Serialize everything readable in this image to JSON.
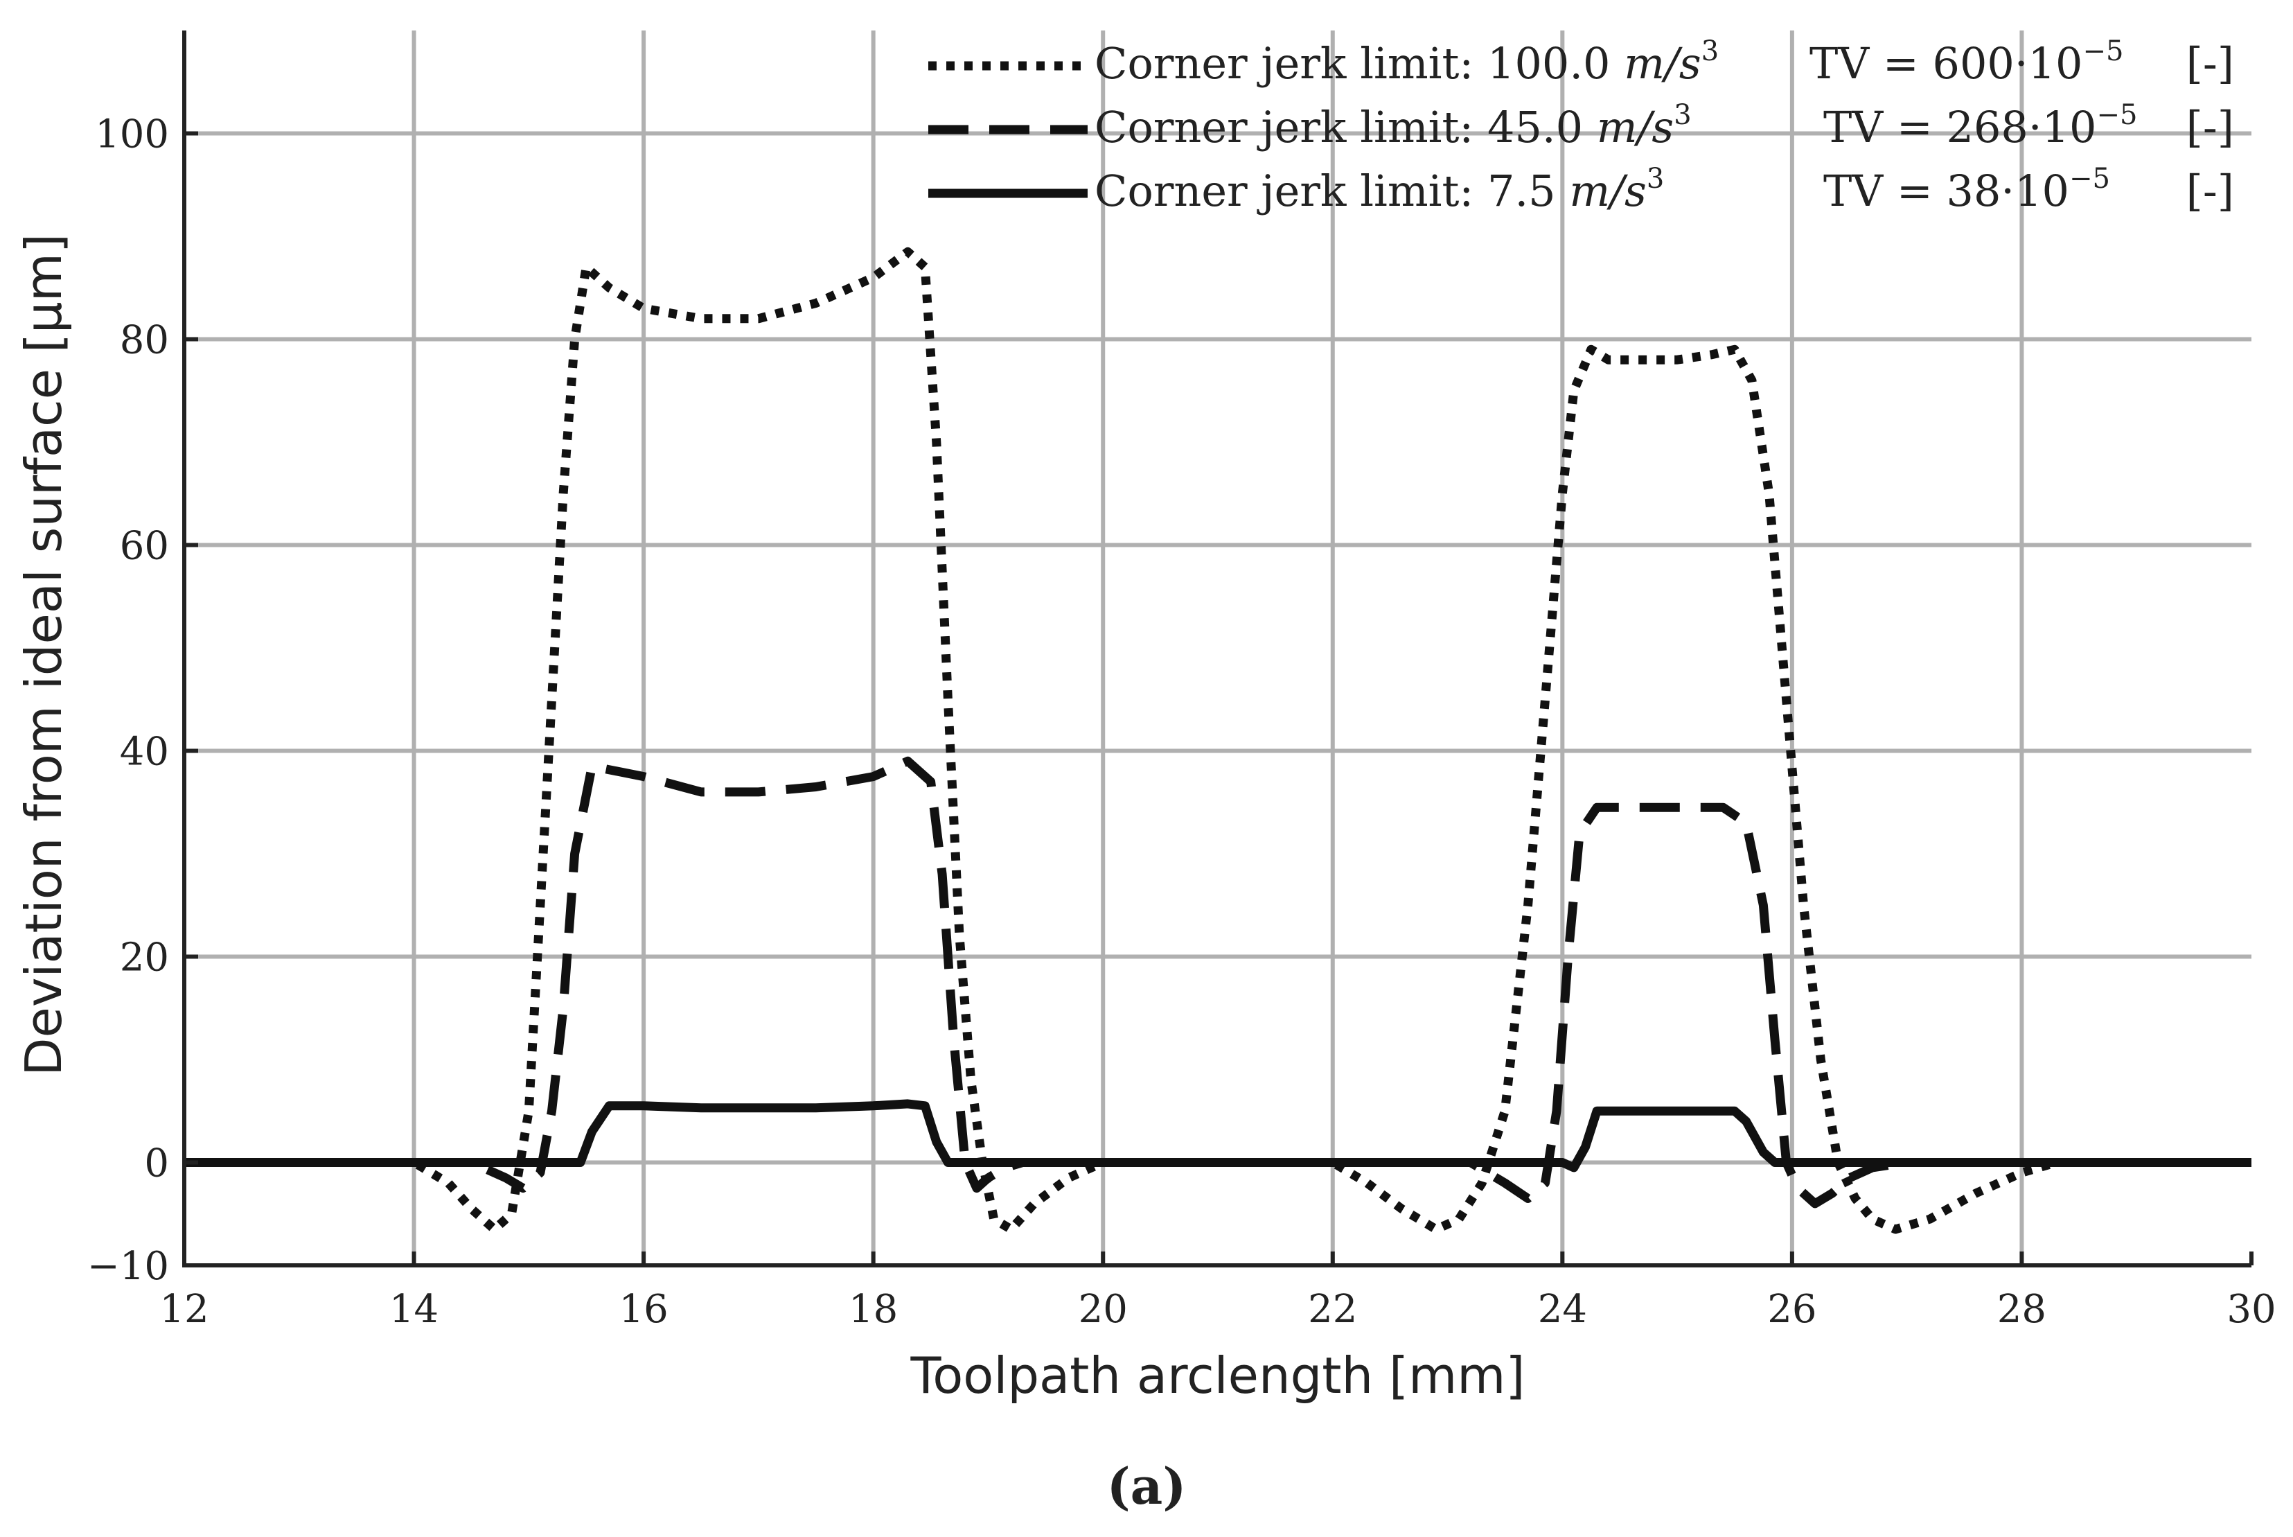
{
  "chart_data": {
    "type": "line",
    "title": "",
    "xlabel": "Toolpath arclength [mm]",
    "ylabel": "Deviation from ideal surface [μm]",
    "xlim": [
      12,
      30
    ],
    "ylim": [
      -10,
      110
    ],
    "xticks": [
      12,
      14,
      16,
      18,
      20,
      22,
      24,
      26,
      28,
      30
    ],
    "yticks": [
      -10,
      0,
      20,
      40,
      60,
      80,
      100
    ],
    "ytick_labels": [
      "−10",
      "0",
      "20",
      "40",
      "60",
      "80",
      "100"
    ],
    "grid": true,
    "legend_position": "top-right",
    "series": [
      {
        "name": "Corner jerk limit: 100.0 m/s³",
        "legend": {
          "prefix": "Corner jerk limit: 100.0 ",
          "unit_base": "m/s",
          "unit_exp": "3",
          "tv_prefix": "TV = 600·10",
          "tv_exp": "−5",
          "tv_suffix": "[-]"
        },
        "style": "dotted",
        "x": [
          12,
          14.0,
          14.3,
          14.5,
          14.7,
          14.85,
          15.0,
          15.1,
          15.2,
          15.3,
          15.4,
          15.5,
          15.7,
          16.0,
          16.5,
          17.0,
          17.5,
          18.0,
          18.3,
          18.45,
          18.55,
          18.65,
          18.75,
          18.85,
          18.95,
          19.05,
          19.2,
          19.4,
          19.7,
          20.0,
          22.0,
          22.3,
          22.6,
          22.9,
          23.1,
          23.3,
          23.5,
          23.7,
          23.85,
          24.0,
          24.1,
          24.25,
          24.4,
          24.7,
          25.0,
          25.3,
          25.5,
          25.65,
          25.8,
          25.95,
          26.1,
          26.25,
          26.4,
          26.55,
          26.7,
          26.9,
          27.2,
          27.6,
          28.0,
          28.3,
          30.0
        ],
        "y": [
          0,
          0,
          -2,
          -4.5,
          -6.5,
          -5,
          5,
          25,
          45,
          65,
          80,
          87,
          85,
          83,
          82,
          82,
          83.5,
          86,
          88.5,
          87,
          70,
          45,
          22,
          8,
          0,
          -5.5,
          -6.5,
          -4,
          -1.5,
          0,
          0,
          -2,
          -4.5,
          -6.5,
          -5.5,
          -2,
          5,
          25,
          45,
          65,
          75,
          79,
          78,
          78,
          78,
          78.5,
          79,
          76,
          65,
          45,
          25,
          10,
          0,
          -3.5,
          -5.5,
          -6.5,
          -5.5,
          -3,
          -1,
          0,
          0
        ]
      },
      {
        "name": "Corner jerk limit: 45.0 m/s³",
        "legend": {
          "prefix": "Corner jerk limit: 45.0 ",
          "unit_base": "m/s",
          "unit_exp": "3",
          "tv_prefix": "TV = 268·10",
          "tv_exp": "−5",
          "tv_suffix": "[-]"
        },
        "style": "dashed",
        "x": [
          12,
          14.5,
          14.8,
          14.95,
          15.1,
          15.2,
          15.3,
          15.4,
          15.55,
          16.0,
          16.5,
          17.0,
          17.5,
          18.0,
          18.3,
          18.5,
          18.6,
          18.7,
          18.8,
          18.9,
          19.0,
          19.15,
          19.3,
          19.6,
          20.0,
          23.2,
          23.5,
          23.7,
          23.85,
          23.95,
          24.05,
          24.15,
          24.3,
          24.6,
          25.0,
          25.4,
          25.6,
          25.75,
          25.85,
          25.95,
          26.05,
          26.2,
          26.35,
          26.5,
          26.7,
          27.0,
          30.0
        ],
        "y": [
          0,
          0,
          -1.5,
          -2.5,
          -1,
          5,
          15,
          30,
          38.5,
          37.5,
          36,
          36,
          36.5,
          37.5,
          39,
          37,
          28,
          12,
          0,
          -2.5,
          -1.5,
          -0.5,
          0,
          0,
          0,
          0,
          -2,
          -3.5,
          -2,
          5,
          20,
          32,
          34.5,
          34.5,
          34.5,
          34.5,
          33,
          25,
          12,
          0,
          -2.5,
          -4,
          -3,
          -1.5,
          -0.5,
          0,
          0
        ]
      },
      {
        "name": "Corner jerk limit: 7.5 m/s³",
        "legend": {
          "prefix": "Corner jerk limit: 7.5 ",
          "unit_base": "m/s",
          "unit_exp": "3",
          "tv_prefix": "TV = 38·10",
          "tv_exp": "−5",
          "tv_suffix": "[-]"
        },
        "style": "solid",
        "x": [
          12,
          14.9,
          15.2,
          15.45,
          15.55,
          15.7,
          16.0,
          16.5,
          17.0,
          17.5,
          18.0,
          18.3,
          18.45,
          18.55,
          18.65,
          18.8,
          24.0,
          24.1,
          24.2,
          24.3,
          24.5,
          25.0,
          25.5,
          25.6,
          25.75,
          25.85,
          26.0,
          30.0
        ],
        "y": [
          0,
          0,
          0,
          0,
          3,
          5.5,
          5.5,
          5.3,
          5.3,
          5.3,
          5.5,
          5.7,
          5.5,
          2,
          0,
          0,
          0,
          -0.5,
          1.5,
          5,
          5,
          5,
          5,
          4,
          1,
          0,
          0,
          0
        ]
      }
    ]
  },
  "caption": "(a)"
}
